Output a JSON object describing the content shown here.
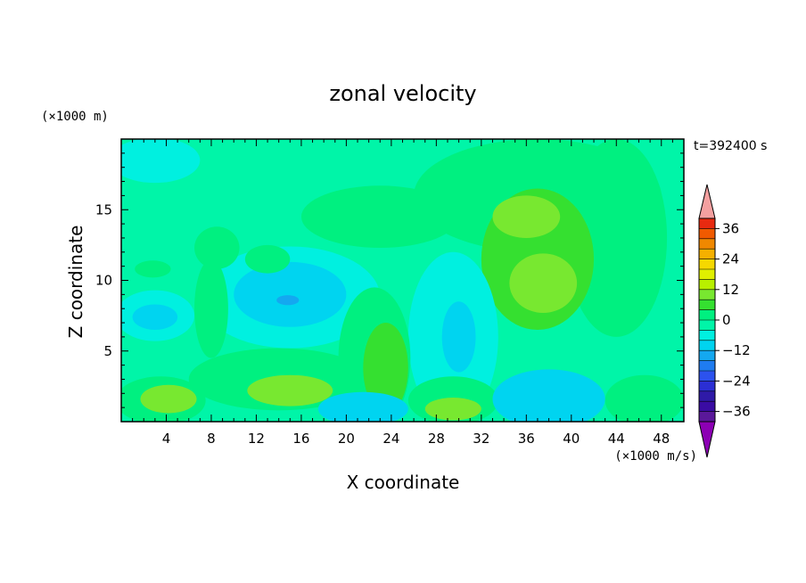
{
  "chart_data": {
    "type": "heatmap",
    "title": "zonal velocity",
    "time_label": "t=392400 s",
    "xlabel": "X coordinate",
    "ylabel": "Z coordinate",
    "x_unit": "(×1000 m/s)",
    "y_unit": "(×1000 m)",
    "xlim": [
      0,
      50
    ],
    "ylim": [
      0,
      20
    ],
    "x_ticks": [
      4,
      8,
      12,
      16,
      20,
      24,
      28,
      32,
      36,
      40,
      44,
      48
    ],
    "y_ticks": [
      5,
      10,
      15
    ],
    "colorbar": {
      "min": -40,
      "max": 40,
      "step": 4,
      "tick_labels": [
        "36",
        "24",
        "12",
        "0",
        "−12",
        "−24",
        "−36"
      ],
      "tick_values": [
        36,
        24,
        12,
        0,
        -12,
        -24,
        -36
      ],
      "colors": [
        "#5a189a",
        "#3a0ca3",
        "#2f1aa8",
        "#2b2fd4",
        "#2c52ee",
        "#1f7cf0",
        "#14a8f0",
        "#00d4f0",
        "#00f0e0",
        "#00f5a8",
        "#00f080",
        "#35e030",
        "#78e830",
        "#b8f000",
        "#e0f000",
        "#f5d800",
        "#f5b000",
        "#f08800",
        "#f05a00",
        "#e82a10"
      ],
      "under_color": "#8c00b4",
      "over_color": "#f4a0a0"
    },
    "regions": [
      {
        "kind": "background",
        "value": -2
      },
      {
        "kind": "blob",
        "center": [
          3,
          18.5
        ],
        "radii": [
          4,
          1.6
        ],
        "value": -6
      },
      {
        "kind": "blob",
        "center": [
          23,
          14.5
        ],
        "radii": [
          7,
          2.2
        ],
        "value": 2
      },
      {
        "kind": "blob",
        "center": [
          37,
          16
        ],
        "radii": [
          11,
          4
        ],
        "value": 2
      },
      {
        "kind": "blob",
        "center": [
          44,
          13
        ],
        "radii": [
          4.5,
          7
        ],
        "value": 2
      },
      {
        "kind": "blob",
        "center": [
          37,
          11.5
        ],
        "radii": [
          5,
          5
        ],
        "value": 6
      },
      {
        "kind": "blob",
        "center": [
          36,
          14.5
        ],
        "radii": [
          3,
          1.5
        ],
        "value": 8
      },
      {
        "kind": "blob",
        "center": [
          37.5,
          9.8
        ],
        "radii": [
          3,
          2.1
        ],
        "value": 11
      },
      {
        "kind": "blob",
        "center": [
          15,
          8.8
        ],
        "radii": [
          8,
          3.6
        ],
        "value": -6
      },
      {
        "kind": "blob",
        "center": [
          15,
          9
        ],
        "radii": [
          5,
          2.3
        ],
        "value": -10
      },
      {
        "kind": "blob",
        "center": [
          14.8,
          8.6
        ],
        "radii": [
          1,
          0.35
        ],
        "value": -16
      },
      {
        "kind": "blob",
        "center": [
          3,
          7.5
        ],
        "radii": [
          3.5,
          1.8
        ],
        "value": -7
      },
      {
        "kind": "blob",
        "center": [
          3,
          7.4
        ],
        "radii": [
          2,
          0.9
        ],
        "value": -10
      },
      {
        "kind": "blob",
        "center": [
          29.5,
          6
        ],
        "radii": [
          4,
          6
        ],
        "value": -6
      },
      {
        "kind": "blob",
        "center": [
          30,
          6
        ],
        "radii": [
          1.5,
          2.5
        ],
        "value": -9
      },
      {
        "kind": "blob",
        "center": [
          8,
          8
        ],
        "radii": [
          1.5,
          3.5
        ],
        "value": 2
      },
      {
        "kind": "blob",
        "center": [
          8.5,
          12.3
        ],
        "radii": [
          2,
          1.5
        ],
        "value": 2
      },
      {
        "kind": "blob",
        "center": [
          2.8,
          10.8
        ],
        "radii": [
          1.6,
          0.6
        ],
        "value": 2
      },
      {
        "kind": "blob",
        "center": [
          13,
          11.5
        ],
        "radii": [
          2,
          1
        ],
        "value": 2
      },
      {
        "kind": "blob",
        "center": [
          14,
          3
        ],
        "radii": [
          8,
          2.2
        ],
        "value": 2
      },
      {
        "kind": "blob",
        "center": [
          15,
          2.2
        ],
        "radii": [
          3.8,
          1.1
        ],
        "value": 10
      },
      {
        "kind": "blob",
        "center": [
          22.5,
          4.5
        ],
        "radii": [
          3.2,
          5
        ],
        "value": 3
      },
      {
        "kind": "blob",
        "center": [
          23.5,
          3.8
        ],
        "radii": [
          2,
          3.2
        ],
        "value": 7
      },
      {
        "kind": "blob",
        "center": [
          3.5,
          1.5
        ],
        "radii": [
          4,
          1.7
        ],
        "value": 3
      },
      {
        "kind": "blob",
        "center": [
          4.2,
          1.6
        ],
        "radii": [
          2.5,
          1
        ],
        "value": 8
      },
      {
        "kind": "blob",
        "center": [
          29.5,
          1.5
        ],
        "radii": [
          4,
          1.7
        ],
        "value": 3
      },
      {
        "kind": "blob",
        "center": [
          29.5,
          0.9
        ],
        "radii": [
          2.5,
          0.8
        ],
        "value": 11
      },
      {
        "kind": "blob",
        "center": [
          46.5,
          1.5
        ],
        "radii": [
          3.5,
          1.8
        ],
        "value": 2
      },
      {
        "kind": "blob",
        "center": [
          21.5,
          0.9
        ],
        "radii": [
          4,
          1.2
        ],
        "value": -9
      },
      {
        "kind": "blob",
        "center": [
          38,
          1.6
        ],
        "radii": [
          5,
          2.1
        ],
        "value": -9
      },
      {
        "kind": "blob",
        "center": [
          38,
          1.4
        ],
        "radii": [
          2.8,
          1.1
        ],
        "value": -12
      }
    ]
  }
}
